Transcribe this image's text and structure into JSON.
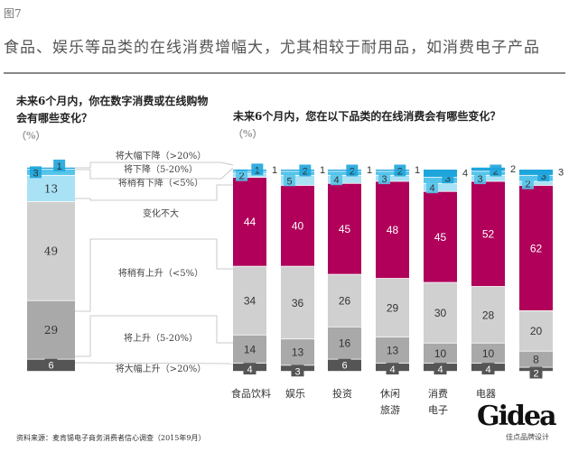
{
  "figure_label": "图7",
  "title": "食品、娱乐等品类的在线消费增幅大，尤其相较于耐用品，如消费电子产品",
  "source": "资料来源：麦肯锡电子商务消费者信心调查（2015年9月）",
  "logo": {
    "text": "Gidea",
    "sub": "佳点品牌设计"
  },
  "colors": {
    "large_decline": "#1ea5dc",
    "decline": "#55c4ea",
    "slight_decline": "#a9e2f5",
    "no_change_left": "#cfcfcf",
    "no_change_right": "#b0005a",
    "slight_rise": "#d0d0d0",
    "rise": "#a9a9a9",
    "large_rise": "#555555"
  },
  "chart_data": [
    {
      "type": "bar",
      "stacked": true,
      "title": "未来6个月内，你在数字消费或在线购物会有哪些变化？",
      "unit": "（%）",
      "categories": [
        ""
      ],
      "series": [
        {
          "name": "将大幅上升（>20%）",
          "values": [
            6
          ]
        },
        {
          "name": "将上升（5-20%）",
          "values": [
            29
          ]
        },
        {
          "name": "将稍有上升（<5%）",
          "values": [
            0
          ]
        },
        {
          "name": "变化不大",
          "values": [
            49
          ]
        },
        {
          "name": "将稍有下降（<5%）",
          "values": [
            13
          ]
        },
        {
          "name": "将下降（5-20%）",
          "values": [
            3
          ]
        },
        {
          "name": "将大幅下降（>20%）",
          "values": [
            1
          ]
        }
      ]
    },
    {
      "type": "bar",
      "stacked": true,
      "title": "未来6个月内，您在以下品类的在线消费会有哪些变化？",
      "unit": "（%）",
      "categories": [
        [
          "食品饮料"
        ],
        [
          "娱乐"
        ],
        [
          "投资"
        ],
        [
          "休闲",
          "旅游"
        ],
        [
          "消费",
          "电子"
        ],
        [
          "电器"
        ],
        [
          ""
        ]
      ],
      "series": [
        {
          "name": "将大幅上升（>20%）",
          "values": [
            4,
            3,
            6,
            4,
            4,
            4,
            2
          ]
        },
        {
          "name": "将上升（5-20%）",
          "values": [
            14,
            13,
            16,
            13,
            10,
            10,
            8
          ]
        },
        {
          "name": "将稍有上升（<5%）",
          "values": [
            34,
            36,
            26,
            29,
            30,
            28,
            20
          ]
        },
        {
          "name": "变化不大",
          "values": [
            44,
            40,
            45,
            48,
            45,
            52,
            62
          ]
        },
        {
          "name": "将稍有下降（<5%）",
          "values": [
            2,
            5,
            4,
            3,
            4,
            3,
            2
          ]
        },
        {
          "name": "将下降（5-20%）",
          "values": [
            1,
            2,
            2,
            2,
            3,
            2,
            3
          ]
        },
        {
          "name": "将大幅下降（>20%）",
          "values": [
            1,
            1,
            1,
            1,
            4,
            2,
            3
          ]
        }
      ]
    }
  ]
}
